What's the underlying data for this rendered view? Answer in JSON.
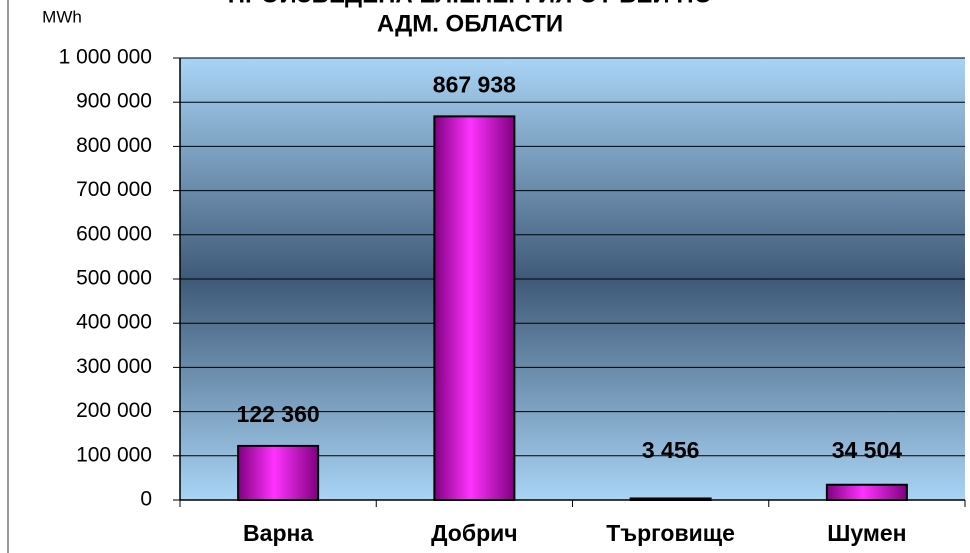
{
  "chart_data": {
    "type": "bar",
    "title": [
      "ПРОИЗВЕДЕНА ЕЛ.ЕНЕРГИЯ ОТ ВЕИ ПО",
      "АДМ. ОБЛАСТИ"
    ],
    "y_label": "MWh",
    "categories": [
      "Варна",
      "Добрич",
      "Търговище",
      "Шумен"
    ],
    "values": [
      122360,
      867938,
      3456,
      34504
    ],
    "value_labels": [
      "122 360",
      "867 938",
      "3 456",
      "34 504"
    ],
    "color": "#cc00cc",
    "ylim": [
      0,
      1000000
    ],
    "yticks": [
      0,
      {
        "value": 100000,
        "label": "100 000"
      },
      {
        "value": 200000,
        "label": "200 000"
      },
      {
        "value": 300000,
        "label": "300 000"
      },
      {
        "value": 400000,
        "label": "400 000"
      },
      {
        "value": 500000,
        "label": "500 000"
      },
      {
        "value": 600000,
        "label": "600 000"
      },
      {
        "value": 700000,
        "label": "700 000"
      },
      {
        "value": 800000,
        "label": "800 000"
      },
      {
        "value": 900000,
        "label": "900 000"
      },
      {
        "value": 1000000,
        "label": "1 000 000"
      }
    ],
    "grid": true
  }
}
